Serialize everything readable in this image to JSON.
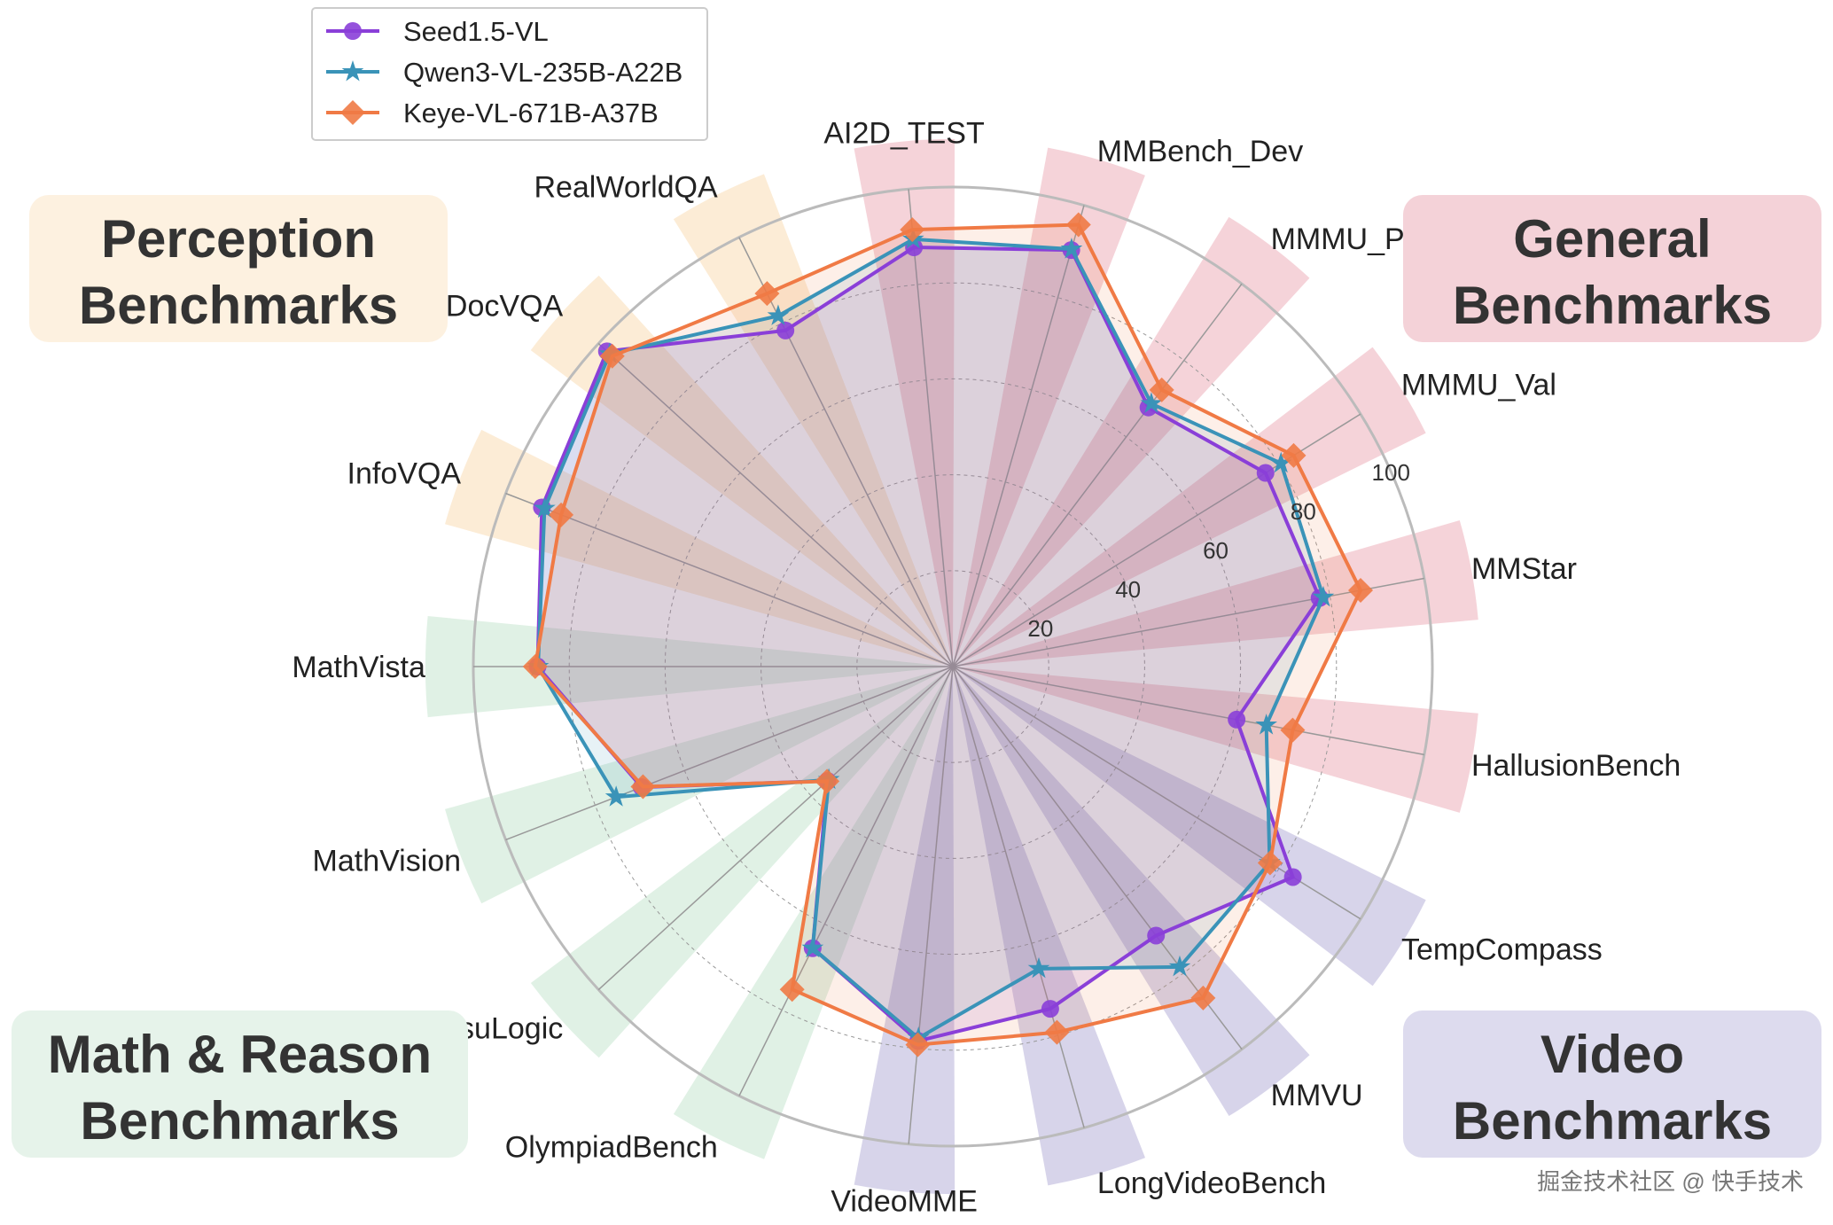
{
  "chart_data": {
    "type": "radar",
    "title": "",
    "axes": [
      "AI2D_TEST",
      "MMBench_Dev",
      "MMMU_Pro",
      "MMMU_Val",
      "MMStar",
      "HallusionBench",
      "TempCompass",
      "MMVU",
      "LongVideoBench",
      "VideoMME",
      "OlympiadBench",
      "VisuLogic",
      "MathVision",
      "MathVista",
      "InfoVQA",
      "DocVQA",
      "RealWorldQA"
    ],
    "rlim": [
      0,
      100
    ],
    "ring_ticks": [
      "20",
      "40",
      "60",
      "80",
      "100"
    ],
    "grid": true,
    "legend_position": "top-left",
    "series": [
      {
        "name": "Seed1.5-VL",
        "color": "#8a3fd8",
        "marker": "circle",
        "values": [
          87.8,
          90.3,
          67.7,
          76.7,
          77.8,
          60.2,
          83.4,
          70.3,
          74.2,
          78.4,
          65.6,
          35.4,
          69.6,
          86.6,
          91.9,
          97.6,
          78.3
        ]
      },
      {
        "name": "Qwen3-VL-235B-A22B",
        "color": "#3a93b8",
        "marker": "star",
        "values": [
          89.5,
          90.5,
          68.7,
          80.5,
          78.6,
          66.5,
          77.7,
          78.5,
          65.5,
          77.8,
          65.6,
          35.0,
          75.3,
          86.5,
          91.3,
          96.8,
          81.7
        ]
      },
      {
        "name": "Keye-VL-671B-A37B",
        "color": "#f07a45",
        "marker": "diamond",
        "values": [
          91.5,
          95.8,
          72.3,
          83.6,
          86.5,
          72.1,
          77.8,
          86.6,
          79.3,
          79.2,
          75.2,
          35.5,
          69.3,
          87.1,
          87.6,
          96.1,
          86.9
        ]
      }
    ],
    "groups": [
      {
        "label_line1": "General",
        "label_line2": "Benchmarks",
        "color": "#f2c4cc",
        "box": "#f4d2d8",
        "axes": [
          "AI2D_TEST",
          "MMBench_Dev",
          "MMMU_Pro",
          "MMMU_Val",
          "MMStar",
          "HallusionBench"
        ]
      },
      {
        "label_line1": "Video",
        "label_line2": "Benchmarks",
        "color": "#c9c6e3",
        "box": "#dddbee",
        "axes": [
          "TempCompass",
          "MMVU",
          "LongVideoBench",
          "VideoMME"
        ]
      },
      {
        "label_line1": "Math & Reason",
        "label_line2": "Benchmarks",
        "color": "#d6ecdc",
        "box": "#e6f3ea",
        "axes": [
          "OlympiadBench",
          "VisuLogic",
          "MathVision",
          "MathVista"
        ]
      },
      {
        "label_line1": "Perception",
        "label_line2": "Benchmarks",
        "color": "#fbe6c8",
        "box": "#fdf1e0",
        "axes": [
          "InfoVQA",
          "DocVQA",
          "RealWorldQA"
        ]
      }
    ]
  },
  "watermark": "掘金技术社区 @ 快手技术"
}
